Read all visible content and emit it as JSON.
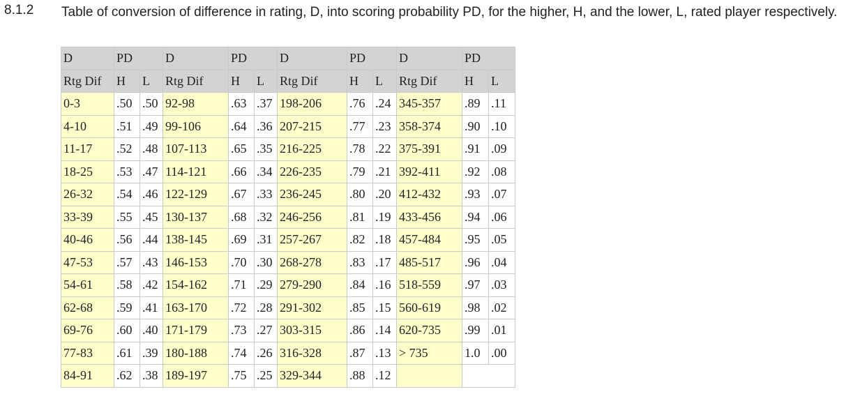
{
  "section": {
    "number": "8.1.2",
    "caption": "Table of conversion of difference in rating, D, into scoring probability PD, for the higher, H, and the lower, L, rated player respectively."
  },
  "table": {
    "header1": [
      "D",
      "PD",
      "D",
      "PD",
      "D",
      "PD",
      "D",
      "PD"
    ],
    "header2": [
      "Rtg Dif",
      "H",
      "L",
      "Rtg Dif",
      "H",
      "L",
      "Rtg Dif",
      "H",
      "L",
      "Rtg Dif",
      "H",
      "L"
    ],
    "rows": [
      [
        "0-3",
        ".50",
        ".50",
        "92-98",
        ".63",
        ".37",
        "198-206",
        ".76",
        ".24",
        "345-357",
        ".89",
        ".11"
      ],
      [
        "4-10",
        ".51",
        ".49",
        "99-106",
        ".64",
        ".36",
        "207-215",
        ".77",
        ".23",
        "358-374",
        ".90",
        ".10"
      ],
      [
        "11-17",
        ".52",
        ".48",
        "107-113",
        ".65",
        ".35",
        "216-225",
        ".78",
        ".22",
        "375-391",
        ".91",
        ".09"
      ],
      [
        "18-25",
        ".53",
        ".47",
        "114-121",
        ".66",
        ".34",
        "226-235",
        ".79",
        ".21",
        "392-411",
        ".92",
        ".08"
      ],
      [
        "26-32",
        ".54",
        ".46",
        "122-129",
        ".67",
        ".33",
        "236-245",
        ".80",
        ".20",
        "412-432",
        ".93",
        ".07"
      ],
      [
        "33-39",
        ".55",
        ".45",
        "130-137",
        ".68",
        ".32",
        "246-256",
        ".81",
        ".19",
        "433-456",
        ".94",
        ".06"
      ],
      [
        "40-46",
        ".56",
        ".44",
        "138-145",
        ".69",
        ".31",
        "257-267",
        ".82",
        ".18",
        "457-484",
        ".95",
        ".05"
      ],
      [
        "47-53",
        ".57",
        ".43",
        "146-153",
        ".70",
        ".30",
        "268-278",
        ".83",
        ".17",
        "485-517",
        ".96",
        ".04"
      ],
      [
        "54-61",
        ".58",
        ".42",
        "154-162",
        ".71",
        ".29",
        "279-290",
        ".84",
        ".16",
        "518-559",
        ".97",
        ".03"
      ],
      [
        "62-68",
        ".59",
        ".41",
        "163-170",
        ".72",
        ".28",
        "291-302",
        ".85",
        ".15",
        "560-619",
        ".98",
        ".02"
      ],
      [
        "69-76",
        ".60",
        ".40",
        "171-179",
        ".73",
        ".27",
        "303-315",
        ".86",
        ".14",
        "620-735",
        ".99",
        ".01"
      ],
      [
        "77-83",
        ".61",
        ".39",
        "180-188",
        ".74",
        ".26",
        "316-328",
        ".87",
        ".13",
        "> 735",
        "1.0",
        ".00"
      ],
      [
        "84-91",
        ".62",
        ".38",
        "189-197",
        ".75",
        ".25",
        "329-344",
        ".88",
        ".12",
        "",
        "",
        ""
      ]
    ]
  }
}
